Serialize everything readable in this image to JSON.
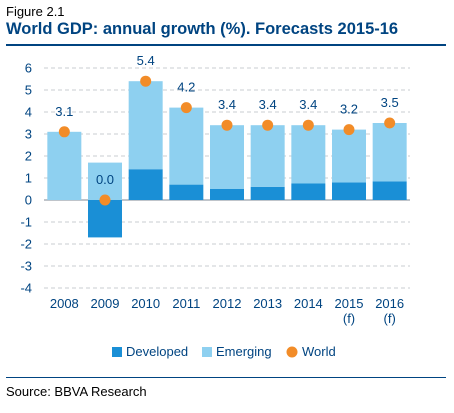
{
  "figure": {
    "label": "Figure 2.1",
    "title": "World GDP: annual growth (%). Forecasts 2015-16",
    "source": "Source: BBVA Research"
  },
  "chart_data": {
    "type": "bar",
    "stacked": true,
    "categories": [
      "2008",
      "2009",
      "2010",
      "2011",
      "2012",
      "2013",
      "2014",
      "2015\n(f)",
      "2016\n(f)"
    ],
    "series": [
      {
        "name": "Developed",
        "type": "bar",
        "color": "#1a8fd6",
        "values": [
          0.0,
          -1.7,
          1.4,
          0.7,
          0.5,
          0.6,
          0.75,
          0.8,
          0.85
        ]
      },
      {
        "name": "Emerging",
        "type": "bar",
        "color": "#8ed0f0",
        "values": [
          3.1,
          1.7,
          4.0,
          3.5,
          2.9,
          2.8,
          2.65,
          2.4,
          2.65
        ]
      },
      {
        "name": "World",
        "type": "scatter",
        "color": "#f28c28",
        "values": [
          3.1,
          0.0,
          5.4,
          4.2,
          3.4,
          3.4,
          3.4,
          3.2,
          3.5
        ]
      }
    ],
    "data_labels": [
      "3.1",
      "0.0",
      "5.4",
      "4.2",
      "3.4",
      "3.4",
      "3.4",
      "3.2",
      "3.5"
    ],
    "ylim": [
      -4,
      6
    ],
    "yticks": [
      "-4",
      "-3",
      "-2",
      "-1",
      "0",
      "1",
      "2",
      "3",
      "4",
      "5",
      "6"
    ],
    "xlabel": "",
    "ylabel": "",
    "grid": "horizontal dashed",
    "legend_position": "bottom"
  }
}
